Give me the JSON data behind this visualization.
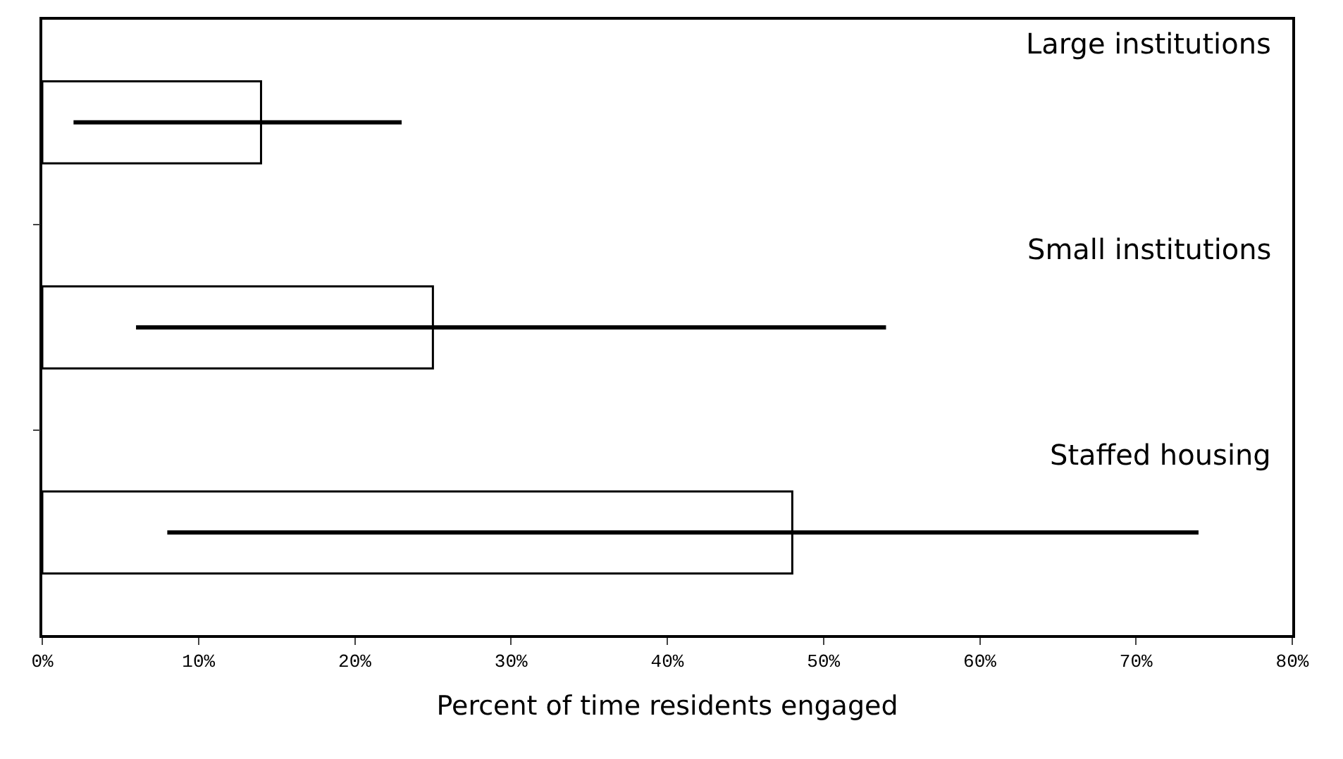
{
  "chart_data": {
    "type": "bar",
    "orientation": "horizontal",
    "xlabel": "Percent of time residents engaged",
    "categories": [
      "Large institutions",
      "Small institutions",
      "Staffed housing"
    ],
    "values": [
      14,
      25,
      48
    ],
    "errors": [
      [
        2,
        23
      ],
      [
        6,
        54
      ],
      [
        8,
        74
      ]
    ],
    "color": "#ffffff",
    "xlim": [
      0,
      80
    ],
    "xticks": [
      {
        "value": 0,
        "label": "0%"
      },
      {
        "value": 10,
        "label": "10%"
      },
      {
        "value": 20,
        "label": "20%"
      },
      {
        "value": 30,
        "label": "30%"
      },
      {
        "value": 40,
        "label": "40%"
      },
      {
        "value": 50,
        "label": "50%"
      },
      {
        "value": 60,
        "label": "60%"
      },
      {
        "value": 70,
        "label": "70%"
      },
      {
        "value": 80,
        "label": "80%"
      }
    ],
    "tick_labels": "x",
    "grid": false,
    "legend": false
  }
}
